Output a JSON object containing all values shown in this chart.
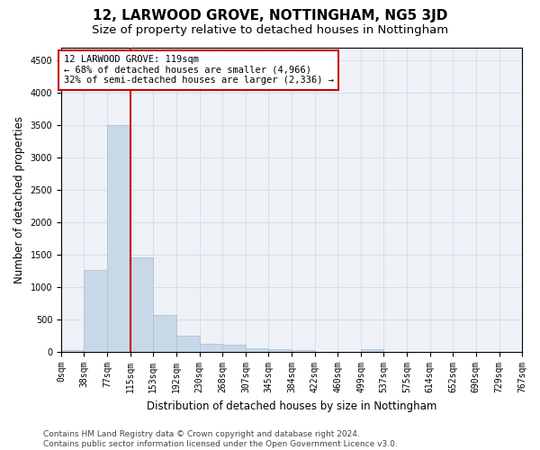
{
  "title": "12, LARWOOD GROVE, NOTTINGHAM, NG5 3JD",
  "subtitle": "Size of property relative to detached houses in Nottingham",
  "xlabel": "Distribution of detached houses by size in Nottingham",
  "ylabel": "Number of detached properties",
  "bar_color": "#c8d8e8",
  "bar_edge_color": "#a8bece",
  "grid_color": "#d0dce8",
  "background_color": "#eef2f7",
  "vline_x": 115,
  "vline_color": "#cc0000",
  "annotation_text": "12 LARWOOD GROVE: 119sqm\n← 68% of detached houses are smaller (4,966)\n32% of semi-detached houses are larger (2,336) →",
  "annotation_box_color": "#ffffff",
  "annotation_box_edgecolor": "#cc0000",
  "bin_edges": [
    0,
    38,
    77,
    115,
    153,
    192,
    230,
    268,
    307,
    345,
    384,
    422,
    460,
    499,
    537,
    575,
    614,
    652,
    690,
    729,
    767
  ],
  "bin_values": [
    25,
    1270,
    3500,
    1460,
    575,
    255,
    130,
    120,
    65,
    45,
    30,
    0,
    0,
    40,
    0,
    0,
    0,
    0,
    0,
    0
  ],
  "ylim": [
    0,
    4700
  ],
  "yticks": [
    0,
    500,
    1000,
    1500,
    2000,
    2500,
    3000,
    3500,
    4000,
    4500
  ],
  "footer_text": "Contains HM Land Registry data © Crown copyright and database right 2024.\nContains public sector information licensed under the Open Government Licence v3.0.",
  "title_fontsize": 11,
  "subtitle_fontsize": 9.5,
  "label_fontsize": 8.5,
  "tick_fontsize": 7,
  "footer_fontsize": 6.5,
  "annot_fontsize": 7.5
}
